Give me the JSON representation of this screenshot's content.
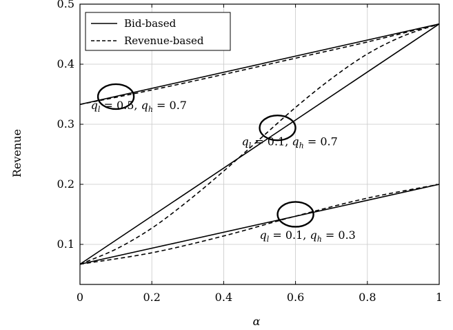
{
  "chart_data": {
    "type": "line",
    "xlabel": "α",
    "ylabel": "Revenue",
    "xlim": [
      0,
      1
    ],
    "ylim": [
      0.0333,
      0.5
    ],
    "xticks": [
      0,
      0.2,
      0.4,
      0.6,
      0.8,
      1
    ],
    "xtick_labels": [
      "0",
      "0.2",
      "0.4",
      "0.6",
      "0.8",
      "1"
    ],
    "yticks": [
      0.1,
      0.2,
      0.3,
      0.4,
      0.5
    ],
    "ytick_labels": [
      "0.1",
      "0.2",
      "0.3",
      "0.4",
      "0.5"
    ],
    "grid": true,
    "legend": {
      "placement": "top-left",
      "entries": [
        {
          "label": "Bid-based",
          "style": "solid"
        },
        {
          "label": "Revenue-based",
          "style": "dashed"
        }
      ]
    },
    "series": [
      {
        "name": "Bid-based",
        "group": "q_l=0.5, q_h=0.7",
        "style": "solid",
        "x": [
          0,
          1
        ],
        "y": [
          0.333,
          0.467
        ]
      },
      {
        "name": "Revenue-based",
        "group": "q_l=0.5, q_h=0.7",
        "style": "dashed",
        "x": [
          0,
          0.2,
          0.4,
          0.6,
          0.8,
          1
        ],
        "y": [
          0.333,
          0.357,
          0.383,
          0.41,
          0.437,
          0.467
        ]
      },
      {
        "name": "Bid-based",
        "group": "q_l=0.1, q_h=0.7",
        "style": "solid",
        "x": [
          0,
          1
        ],
        "y": [
          0.067,
          0.467
        ]
      },
      {
        "name": "Revenue-based",
        "group": "q_l=0.1, q_h=0.7",
        "style": "dashed",
        "x": [
          0,
          0.1,
          0.2,
          0.3,
          0.4,
          0.5,
          0.6,
          0.7,
          0.8,
          0.9,
          1
        ],
        "y": [
          0.067,
          0.092,
          0.127,
          0.172,
          0.222,
          0.275,
          0.328,
          0.376,
          0.417,
          0.447,
          0.467
        ]
      },
      {
        "name": "Bid-based",
        "group": "q_l=0.1, q_h=0.3",
        "style": "solid",
        "x": [
          0,
          1
        ],
        "y": [
          0.067,
          0.2
        ]
      },
      {
        "name": "Revenue-based",
        "group": "q_l=0.1, q_h=0.3",
        "style": "dashed",
        "x": [
          0,
          0.2,
          0.4,
          0.6,
          0.8,
          1
        ],
        "y": [
          0.067,
          0.086,
          0.114,
          0.147,
          0.177,
          0.2
        ]
      }
    ],
    "annotations": [
      {
        "text": "q_l = 0.5, q_h = 0.7",
        "at": [
          0.03,
          0.325
        ],
        "parts": {
          "v1": "0.5",
          "v2": "0.7"
        }
      },
      {
        "text": "q_l = 0.1, q_h = 0.7",
        "at": [
          0.45,
          0.265
        ],
        "parts": {
          "v1": "0.1",
          "v2": "0.7"
        }
      },
      {
        "text": "q_l = 0.1, q_h = 0.3",
        "at": [
          0.5,
          0.109
        ],
        "parts": {
          "v1": "0.1",
          "v2": "0.3"
        }
      }
    ],
    "ellipses": [
      {
        "center": [
          0.1,
          0.346
        ]
      },
      {
        "center": [
          0.55,
          0.294
        ]
      },
      {
        "center": [
          0.6,
          0.15
        ]
      }
    ]
  }
}
